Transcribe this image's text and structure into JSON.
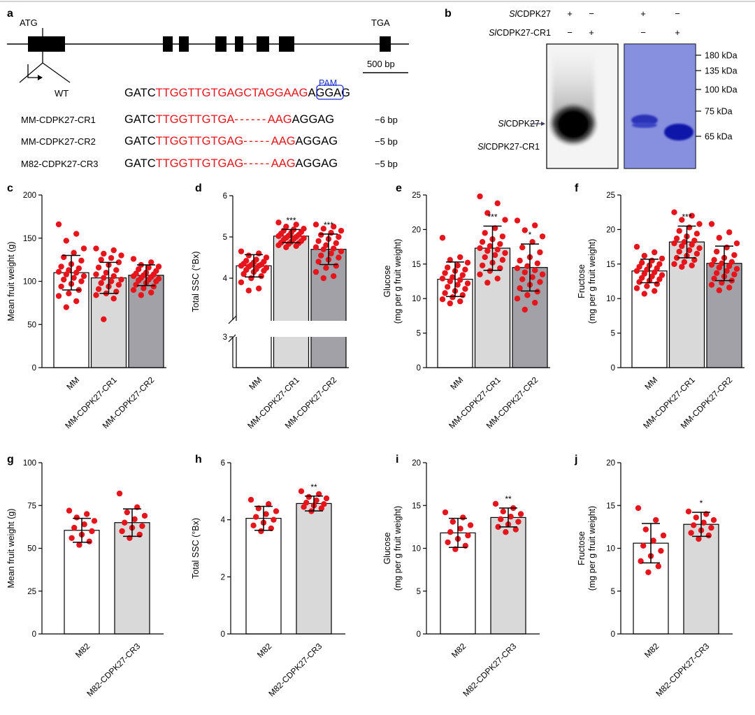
{
  "colors": {
    "red": "#e8141b",
    "blue": "#1f2fd1",
    "bar_white": "#ffffff",
    "bar_light": "#d9d9d9",
    "bar_dark": "#a3a1a8",
    "gel_blue": "#6f79d6"
  },
  "panel_a": {
    "label": "a",
    "atg": "ATG",
    "tga": "TGA",
    "scale": "500 bp",
    "pam": "PAM",
    "sequences": [
      {
        "name": "WT",
        "prefix": "GATC",
        "red": "TTGGTTGTGAGCTAGGAAG",
        "dashes": "",
        "red2": "",
        "suffix": "AGGAG",
        "pam_box": true,
        "indel": ""
      },
      {
        "name": "MM-CDPK27-CR1",
        "prefix": "GATC",
        "red": "TTGGTTGTGA",
        "dashes": "------",
        "red2": "AAG",
        "suffix": "AGGAG",
        "pam_box": false,
        "indel": "−6 bp"
      },
      {
        "name": "MM-CDPK27-CR2",
        "prefix": "GATC",
        "red": "TTGGTTGTGAG",
        "dashes": "-----",
        "red2": "AAG",
        "suffix": "AGGAG",
        "pam_box": false,
        "indel": "−5 bp"
      },
      {
        "name": "M82-CDPK27-CR3",
        "prefix": "GATC",
        "red": "TTGGTTGTGAG",
        "dashes": "-----",
        "red2": "AAG",
        "suffix": "AGGAG",
        "pam_box": false,
        "indel": "−5 bp"
      }
    ]
  },
  "panel_b": {
    "label": "b",
    "row1_prefix": "Sl",
    "row1_suffix": "CDPK27",
    "row2_prefix": "Sl",
    "row2_suffix": "CDPK27-CR1",
    "signs_row1": [
      "+",
      "−",
      "+",
      "−"
    ],
    "signs_row2": [
      "−",
      "+",
      "−",
      "+"
    ],
    "band_label1_prefix": "Sl",
    "band_label1_suffix": "CDPK27",
    "band_label2_prefix": "Sl",
    "band_label2_suffix": "CDPK27-CR1",
    "markers": [
      "180 kDa",
      "135 kDa",
      "100 kDa",
      "75 kDa",
      "65 kDa"
    ]
  },
  "chart_data": [
    {
      "id": "c",
      "label": "c",
      "type": "bar",
      "ylabel": "Mean fruit weight (g)",
      "ylim": [
        0,
        200
      ],
      "yticks": [
        0,
        50,
        100,
        150,
        200
      ],
      "categories": [
        "MM",
        "MM-CDPK27-CR1",
        "MM-CDPK27-CR2"
      ],
      "values": [
        110,
        104,
        107
      ],
      "errors": [
        20,
        18,
        12
      ],
      "signif": [
        "",
        "",
        ""
      ],
      "points": [
        [
          166,
          155,
          147,
          138,
          133,
          128,
          124,
          120,
          117,
          115,
          113,
          111,
          110,
          108,
          106,
          104,
          102,
          100,
          97,
          94,
          90,
          86,
          83,
          77,
          70
        ],
        [
          138,
          136,
          132,
          130,
          127,
          125,
          122,
          119,
          116,
          113,
          110,
          108,
          106,
          104,
          102,
          100,
          98,
          96,
          94,
          91,
          88,
          86,
          84,
          80,
          56
        ],
        [
          126,
          122,
          119,
          117,
          116,
          114,
          112,
          110,
          109,
          108,
          107,
          106,
          105,
          104,
          103,
          102,
          101,
          100,
          98,
          96,
          94,
          92,
          90,
          87,
          84
        ]
      ]
    },
    {
      "id": "d",
      "label": "d",
      "type": "bar",
      "ylabel": "Total SSC (°Bx)",
      "ylim": [
        2.5,
        6
      ],
      "yticks": [
        3,
        4,
        5,
        6
      ],
      "axis_break": [
        3.25,
        3.55
      ],
      "categories": [
        "MM",
        "MM-CDPK27-CR1",
        "MM-CDPK27-CR2"
      ],
      "values": [
        4.3,
        5.02,
        4.7
      ],
      "errors": [
        0.27,
        0.16,
        0.37
      ],
      "signif": [
        "",
        "***",
        "***"
      ],
      "points": [
        [
          4.65,
          4.6,
          4.55,
          4.5,
          4.45,
          4.42,
          4.4,
          4.38,
          4.35,
          4.33,
          4.32,
          4.3,
          4.3,
          4.28,
          4.25,
          4.22,
          4.2,
          4.18,
          4.15,
          4.1,
          4.05,
          4.0,
          3.9,
          3.75,
          3.7
        ],
        [
          5.35,
          5.3,
          5.25,
          5.2,
          5.18,
          5.15,
          5.12,
          5.1,
          5.08,
          5.05,
          5.03,
          5.02,
          5.0,
          4.98,
          4.97,
          4.95,
          4.93,
          4.9,
          4.88,
          4.86,
          4.85,
          4.83,
          4.8,
          4.78,
          4.75
        ],
        [
          5.3,
          5.25,
          5.2,
          5.15,
          5.1,
          5.05,
          5.0,
          4.95,
          4.9,
          4.85,
          4.8,
          4.75,
          4.72,
          4.7,
          4.65,
          4.6,
          4.55,
          4.5,
          4.45,
          4.4,
          4.3,
          4.25,
          4.15,
          4.05,
          4.0
        ]
      ]
    },
    {
      "id": "e",
      "label": "e",
      "type": "bar",
      "ylabel": "Glucose (mg per g fruit weight)",
      "ylim": [
        0,
        25
      ],
      "yticks": [
        0,
        5,
        10,
        15,
        20,
        25
      ],
      "categories": [
        "MM",
        "MM-CDPK27-CR1",
        "MM-CDPK27-CR2"
      ],
      "values": [
        12.8,
        17.3,
        14.5
      ],
      "errors": [
        2.5,
        3.2,
        3.4
      ],
      "signif": [
        "",
        "***",
        "*"
      ],
      "points": [
        [
          18.8,
          16,
          15.6,
          15.2,
          14.8,
          14.5,
          14.2,
          14,
          13.7,
          13.4,
          13.1,
          12.9,
          12.7,
          12.5,
          12.2,
          12,
          11.7,
          11.4,
          11.1,
          10.8,
          10.5,
          10.2,
          9.9,
          9.6,
          9.3
        ],
        [
          24.8,
          23.8,
          22.4,
          21.4,
          20.2,
          19.5,
          19,
          18.6,
          18.2,
          17.9,
          17.6,
          17.3,
          17.1,
          16.9,
          16.6,
          16.3,
          16,
          15.6,
          15.2,
          14.8,
          14.4,
          14,
          13.5,
          12.9,
          12.3
        ],
        [
          21.3,
          20.6,
          19.9,
          19,
          18.2,
          17.4,
          16.7,
          16,
          15.5,
          15.1,
          14.7,
          14.4,
          14.1,
          13.8,
          13.5,
          13.1,
          12.8,
          12.4,
          12,
          11.5,
          11,
          10.5,
          10,
          9.4,
          8.4
        ]
      ]
    },
    {
      "id": "f",
      "label": "f",
      "type": "bar",
      "ylabel": "Fructose (mg per g fruit weight)",
      "ylim": [
        0,
        25
      ],
      "yticks": [
        0,
        5,
        10,
        15,
        20,
        25
      ],
      "categories": [
        "MM",
        "MM-CDPK27-CR1",
        "MM-CDPK27-CR2"
      ],
      "values": [
        14,
        18.2,
        15.1
      ],
      "errors": [
        1.7,
        2.3,
        2.5
      ],
      "signif": [
        "",
        "***",
        ""
      ],
      "points": [
        [
          17.5,
          16.7,
          16.2,
          15.8,
          15.5,
          15.2,
          15,
          14.8,
          14.6,
          14.4,
          14.2,
          14,
          13.8,
          13.6,
          13.4,
          13.2,
          13,
          12.8,
          12.6,
          12.4,
          12.1,
          11.8,
          11.5,
          11.1,
          10.7
        ],
        [
          22.5,
          22,
          21.4,
          20.8,
          20.3,
          19.8,
          19.4,
          19,
          18.7,
          18.4,
          18.2,
          18,
          17.8,
          17.6,
          17.3,
          17,
          16.8,
          16.5,
          16.2,
          15.9,
          15.6,
          15.3,
          15,
          14.8,
          14.6
        ],
        [
          20.8,
          19.6,
          18.8,
          18,
          17.4,
          16.8,
          16.3,
          15.9,
          15.6,
          15.3,
          15.1,
          14.9,
          14.7,
          14.5,
          14.3,
          14,
          13.7,
          13.5,
          13.2,
          12.9,
          12.6,
          12.3,
          12,
          11.6,
          11.2
        ]
      ]
    },
    {
      "id": "g",
      "label": "g",
      "type": "bar",
      "ylabel": "Mean fruit weight (g)",
      "ylim": [
        0,
        100
      ],
      "yticks": [
        0,
        25,
        50,
        75,
        100
      ],
      "categories": [
        "M82",
        "M82-CDPK27-CR3"
      ],
      "values": [
        60.5,
        65
      ],
      "errors": [
        7,
        8
      ],
      "signif": [
        "",
        ""
      ],
      "points": [
        [
          72,
          70,
          68,
          66,
          64,
          62,
          60,
          58,
          56,
          54,
          52
        ],
        [
          82,
          74,
          71,
          69,
          67,
          65,
          63,
          62,
          60,
          58,
          56
        ]
      ]
    },
    {
      "id": "h",
      "label": "h",
      "type": "bar",
      "ylabel": "Total SSC (°Bx)",
      "ylim": [
        0,
        6
      ],
      "yticks": [
        0,
        2,
        4,
        6
      ],
      "categories": [
        "M82",
        "M82-CDPK27-CR3"
      ],
      "values": [
        4.05,
        4.57
      ],
      "errors": [
        0.42,
        0.26
      ],
      "signif": [
        "",
        "**"
      ],
      "points": [
        [
          4.7,
          4.55,
          4.4,
          4.3,
          4.2,
          4.1,
          4.0,
          3.9,
          3.8,
          3.7,
          3.6
        ],
        [
          5.0,
          4.9,
          4.8,
          4.75,
          4.68,
          4.6,
          4.55,
          4.5,
          4.45,
          4.4,
          4.3
        ]
      ]
    },
    {
      "id": "i",
      "label": "i",
      "type": "bar",
      "ylabel": "Glucose (mg per g fruit weight)",
      "ylim": [
        0,
        20
      ],
      "yticks": [
        0,
        5,
        10,
        15,
        20
      ],
      "categories": [
        "M82",
        "M82-CDPK27-CR3"
      ],
      "values": [
        11.8,
        13.6
      ],
      "errors": [
        1.7,
        1.1
      ],
      "signif": [
        "",
        "**"
      ],
      "points": [
        [
          14.2,
          13.6,
          13.1,
          12.7,
          12.3,
          11.9,
          11.5,
          11.1,
          10.7,
          10.3,
          9.9
        ],
        [
          15.2,
          14.7,
          14.3,
          14.0,
          13.7,
          13.4,
          13.1,
          12.8,
          12.5,
          12.2,
          11.9
        ]
      ]
    },
    {
      "id": "j",
      "label": "j",
      "type": "bar",
      "ylabel": "Fructose (mg per g fruit weight)",
      "ylim": [
        0,
        20
      ],
      "yticks": [
        0,
        5,
        10,
        15,
        20
      ],
      "categories": [
        "M82",
        "M82-CDPK27-CR3"
      ],
      "values": [
        10.6,
        12.8
      ],
      "errors": [
        2.3,
        1.4
      ],
      "signif": [
        "",
        "*"
      ],
      "points": [
        [
          14.7,
          13.3,
          12.2,
          11.5,
          10.9,
          10.3,
          9.7,
          9.1,
          8.5,
          7.9,
          7.2
        ],
        [
          14.3,
          14.0,
          13.6,
          13.3,
          13.0,
          12.7,
          12.4,
          12.1,
          11.8,
          11.5,
          11.1
        ]
      ]
    }
  ]
}
